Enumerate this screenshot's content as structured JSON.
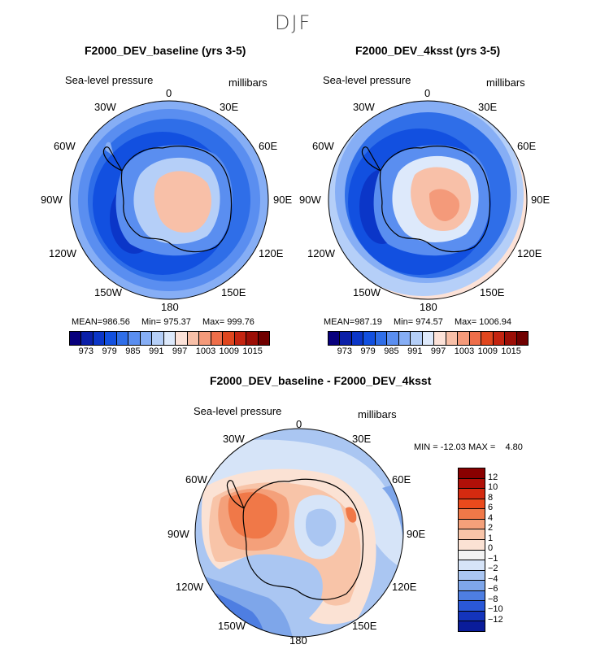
{
  "figure": {
    "season": "DJF"
  },
  "panels": [
    {
      "title": "F2000_DEV_baseline (yrs 3-5)",
      "variable": "Sea-level pressure",
      "units": "millibars",
      "lon_labels": [
        "0",
        "30E",
        "60E",
        "90E",
        "120E",
        "150E",
        "180",
        "150W",
        "120W",
        "90W",
        "60W",
        "30W"
      ],
      "stats": {
        "mean_label": "MEAN=",
        "mean": "986.56",
        "min_label": "Min=",
        "min": "975.37",
        "max_label": "Max=",
        "max": "999.76"
      },
      "colorbar_ticks": [
        "973",
        "979",
        "985",
        "991",
        "997",
        "1003",
        "1009",
        "1015"
      ]
    },
    {
      "title": "F2000_DEV_4ksst (yrs 3-5)",
      "variable": "Sea-level pressure",
      "units": "millibars",
      "lon_labels": [
        "0",
        "30E",
        "60E",
        "90E",
        "120E",
        "150E",
        "180",
        "150W",
        "120W",
        "90W",
        "60W",
        "30W"
      ],
      "stats": {
        "mean_label": "MEAN=",
        "mean": "987.19",
        "min_label": "Min=",
        "min": "974.57",
        "max_label": "Max=",
        "max": "1006.94"
      },
      "colorbar_ticks": [
        "973",
        "979",
        "985",
        "991",
        "997",
        "1003",
        "1009",
        "1015"
      ]
    },
    {
      "title": "F2000_DEV_baseline - F2000_DEV_4ksst",
      "variable": "Sea-level pressure",
      "units": "millibars",
      "lon_labels": [
        "0",
        "30E",
        "60E",
        "90E",
        "120E",
        "150E",
        "180",
        "150W",
        "120W",
        "90W",
        "60W",
        "30W"
      ],
      "stats_text": "MIN = -12.03 MAX =    4.80",
      "colorbar_ticks": [
        "12",
        "10",
        "8",
        "6",
        "4",
        "2",
        "1",
        "0",
        "−1",
        "−2",
        "−4",
        "−6",
        "−8",
        "−10",
        "−12"
      ]
    }
  ],
  "colors": {
    "abs_scale": [
      "#08007d",
      "#0a1fa8",
      "#0b36c8",
      "#1250e0",
      "#2f6ee8",
      "#5a8ef0",
      "#86aef5",
      "#b5cff8",
      "#dde9fb",
      "#fce2d8",
      "#f8c0a8",
      "#f49a7a",
      "#ee6e4a",
      "#e0461e",
      "#c42410",
      "#9c0e06",
      "#700000"
    ],
    "diff_scale": [
      "#8a0000",
      "#b01008",
      "#d42a10",
      "#ea4a1c",
      "#f07848",
      "#f4a07a",
      "#f8c4a8",
      "#fbe2d4",
      "#f4f4f4",
      "#d6e4f8",
      "#aac6f2",
      "#7ea6ea",
      "#4e7ee2",
      "#2a58d8",
      "#1434bc",
      "#0a1c9a"
    ]
  }
}
